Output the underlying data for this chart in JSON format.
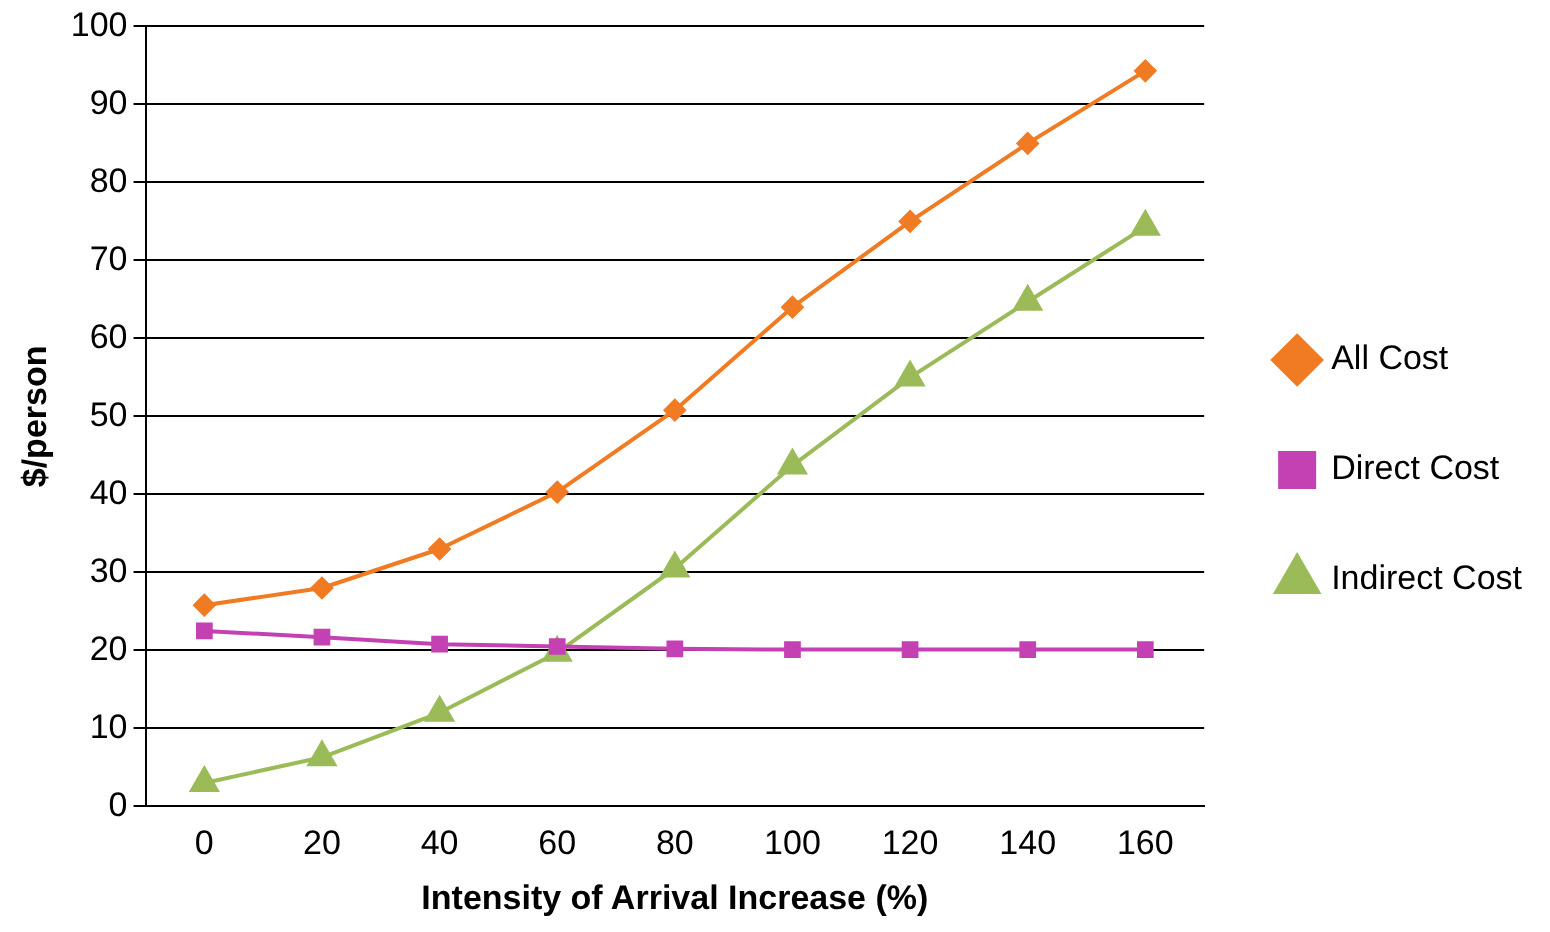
{
  "chart_data": {
    "type": "line",
    "xlabel": "Intensity of Arrival Increase (%)",
    "ylabel": "$/person",
    "categories": [
      "0",
      "20",
      "40",
      "60",
      "80",
      "100",
      "120",
      "140",
      "160"
    ],
    "series": [
      {
        "name": "All Cost",
        "color": "#f07b22",
        "marker": "diamond",
        "values": [
          25.8,
          28,
          33,
          40.3,
          50.8,
          64,
          75,
          85,
          94.3
        ]
      },
      {
        "name": "Direct Cost",
        "color": "#c441b4",
        "marker": "square",
        "values": [
          22.5,
          21.7,
          20.8,
          20.5,
          20.2,
          20.1,
          20.1,
          20.1,
          20.1
        ]
      },
      {
        "name": "Indirect Cost",
        "color": "#9bbb59",
        "marker": "triangle",
        "values": [
          3,
          6.3,
          12,
          19.7,
          30.5,
          43.7,
          55,
          64.7,
          74.3
        ]
      }
    ],
    "ylim": [
      0,
      100
    ],
    "yticks": [
      0,
      10,
      20,
      30,
      40,
      50,
      60,
      70,
      80,
      90,
      100
    ],
    "grid": "y",
    "legend": "right"
  }
}
